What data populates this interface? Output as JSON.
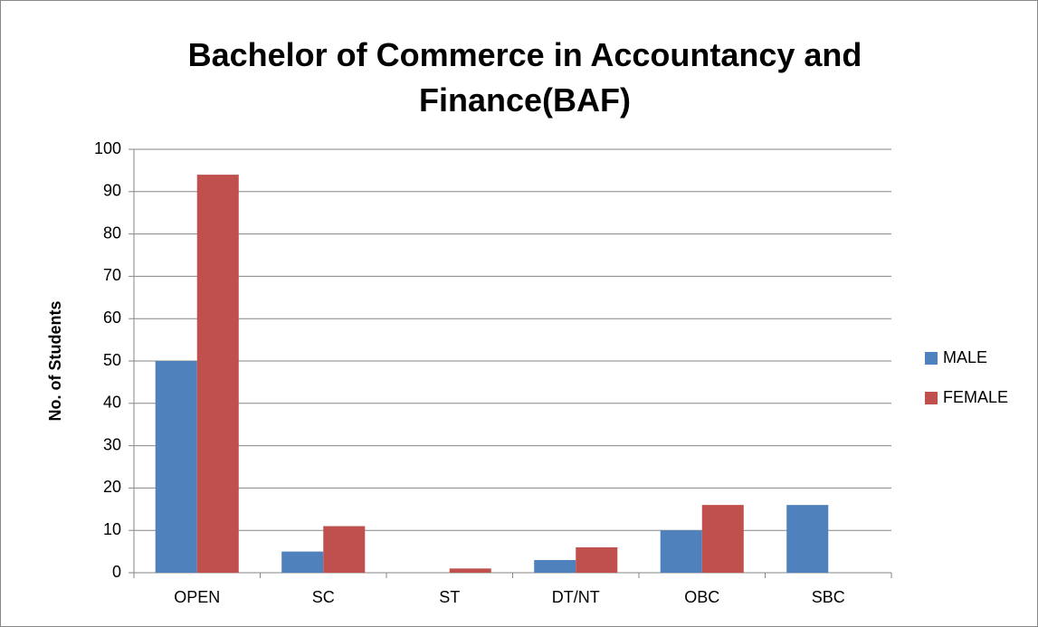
{
  "chart_data": {
    "type": "bar",
    "title": "Bachelor of Commerce in Accountancy and Finance(BAF)",
    "y_label": "No. of Students",
    "categories": [
      "OPEN",
      "SC",
      "ST",
      "DT/NT",
      "OBC",
      "SBC"
    ],
    "series": [
      {
        "name": "MALE",
        "color": "#4f81bd",
        "values": [
          50,
          5,
          0,
          3,
          10,
          16
        ]
      },
      {
        "name": "FEMALE",
        "color": "#c0504d",
        "values": [
          94,
          11,
          1,
          6,
          16,
          0
        ]
      }
    ],
    "ylim": [
      0,
      100
    ],
    "yticks": [
      0,
      10,
      20,
      30,
      40,
      50,
      60,
      70,
      80,
      90,
      100
    ],
    "grid": true,
    "legend": "right"
  }
}
